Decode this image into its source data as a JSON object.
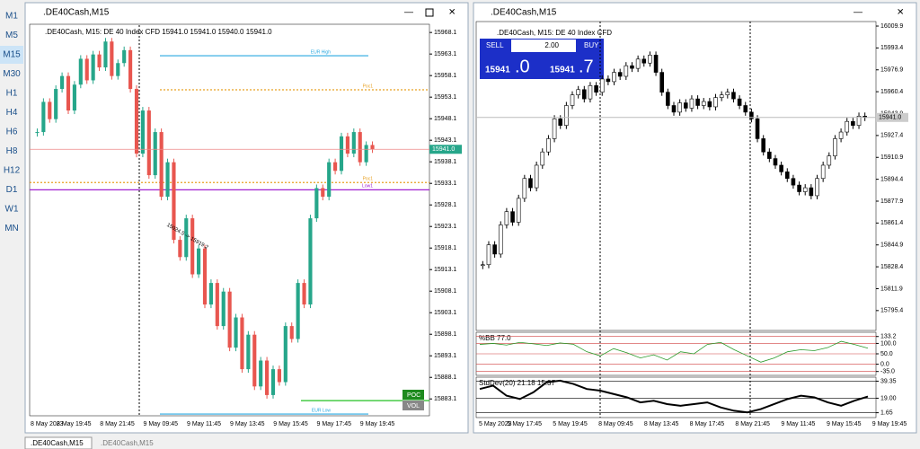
{
  "sidebar": {
    "timeframes": [
      "M1",
      "M5",
      "M15",
      "M30",
      "H1",
      "H4",
      "H6",
      "H8",
      "H12",
      "D1",
      "W1",
      "MN"
    ],
    "active": 2
  },
  "left_window": {
    "title": ".DE40Cash,M15",
    "info": ".DE40Cash, M15:  DE 40 Index CFD  15941.0 15941.0 15940.0 15941.0",
    "ylim": [
      15879.4,
      15969.8
    ],
    "yticks": [
      15968.1,
      15963.1,
      15958.1,
      15953.1,
      15948.1,
      15943.1,
      15938.1,
      15933.1,
      15928.1,
      15923.1,
      15918.1,
      15913.1,
      15908.1,
      15903.1,
      15898.1,
      15893.1,
      15888.1,
      15883.1
    ],
    "xlabels": [
      "8 May 2023",
      "8 May 19:45",
      "8 May 21:45",
      "9 May 09:45",
      "9 May 11:45",
      "9 May 13:45",
      "9 May 15:45",
      "9 May 17:45",
      "9 May 19:45"
    ],
    "closes": [
      15945,
      15952,
      15948,
      15955,
      15958,
      15950,
      15956,
      15962,
      15957,
      15963,
      15960,
      15966,
      15958,
      15961,
      15964,
      15955,
      15940,
      15950,
      15935,
      15945,
      15930,
      15938,
      15920,
      15916,
      15925,
      15912,
      15918,
      15905,
      15910,
      15900,
      15908,
      15895,
      15902,
      15890,
      15898,
      15886,
      15892,
      15884,
      15890,
      15887,
      15900,
      15897,
      15910,
      15905,
      15925,
      15932,
      15930,
      15938,
      15936,
      15944,
      15940,
      15945,
      15938,
      15942,
      15941
    ],
    "levels": [
      {
        "name": "EUR High",
        "value": 15962.7,
        "color": "#29a8e0"
      },
      {
        "name": "Poc1",
        "value": 15954.8,
        "color": "#e8a020"
      },
      {
        "name": "Poc1",
        "value": 15933.3,
        "color": "#e8a020"
      },
      {
        "name": "Low1",
        "value": 15931.6,
        "color": "#a020d0"
      },
      {
        "name": "EUR Low",
        "value": 15879.6,
        "color": "#29a8e0"
      }
    ],
    "poc_level": 15882.7,
    "price_label": "15941.0",
    "projection": "15924.5 -> 15919.2",
    "poc": "POC",
    "vol": "VOL"
  },
  "right_window": {
    "title": ".DE40Cash,M15",
    "info": ".DE40Cash, M15:  DE 40 Index CFD",
    "ylim": [
      15780.4,
      16013.3
    ],
    "yticks": [
      16009.9,
      15993.4,
      15976.9,
      15960.4,
      15943.9,
      15927.4,
      15910.9,
      15894.4,
      15877.9,
      15861.4,
      15844.9,
      15828.4,
      15811.9,
      15795.4
    ],
    "xlabels": [
      "5 May 2023",
      "5 May 17:45",
      "5 May 19:45",
      "8 May 09:45",
      "8 May 13:45",
      "8 May 17:45",
      "8 May 21:45",
      "9 May 11:45",
      "9 May 15:45",
      "9 May 19:45"
    ],
    "closes": [
      15830,
      15845,
      15838,
      15860,
      15870,
      15862,
      15880,
      15895,
      15888,
      15905,
      15915,
      15925,
      15940,
      15935,
      15950,
      15958,
      15962,
      15955,
      15965,
      15960,
      15970,
      15968,
      15975,
      15972,
      15980,
      15978,
      15985,
      15982,
      15988,
      15975,
      15960,
      15950,
      15945,
      15952,
      15948,
      15955,
      15950,
      15953,
      15949,
      15956,
      15958,
      15960,
      15955,
      15950,
      15945,
      15940,
      15925,
      15915,
      15910,
      15905,
      15900,
      15895,
      15890,
      15885,
      15888,
      15882,
      15895,
      15905,
      15912,
      15925,
      15930,
      15938,
      15935,
      15942,
      15941
    ],
    "price_label": "15941.0",
    "trade": {
      "sell": "SELL",
      "volume": "2.00",
      "buy": "BUY",
      "bid_big": "15941",
      "bid_small": ".0",
      "ask_big": "15941",
      "ask_small": ".7"
    },
    "bb": {
      "label": "%BB 77.0",
      "ylim": [
        -45,
        145
      ],
      "yticks": [
        133.2,
        {
          "value": 100,
          "label": "100.0"
        },
        {
          "value": 50,
          "label": "50.0"
        },
        {
          "value": 0,
          "label": "0.0"
        },
        {
          "value": -35,
          "label": "-35.0"
        }
      ],
      "values": [
        95,
        100,
        92,
        105,
        98,
        90,
        102,
        96,
        60,
        40,
        75,
        55,
        30,
        45,
        20,
        60,
        50,
        95,
        105,
        70,
        40,
        10,
        30,
        60,
        70,
        65,
        80,
        110,
        95,
        77
      ]
    },
    "sd": {
      "label": "StdDev(20) 21.18 15.37",
      "ylim": [
        -2,
        42
      ],
      "yticks": [
        39.35,
        {
          "value": 19,
          "label": "19.00"
        },
        1.65
      ],
      "values": [
        30,
        34,
        22,
        18,
        26,
        38,
        40,
        36,
        30,
        28,
        24,
        20,
        14,
        16,
        12,
        10,
        12,
        14,
        8,
        4,
        2,
        6,
        12,
        18,
        22,
        20,
        14,
        10,
        16,
        21
      ]
    }
  },
  "tabs": [
    ".DE40Cash,M15",
    ".DE40Cash,M15"
  ]
}
